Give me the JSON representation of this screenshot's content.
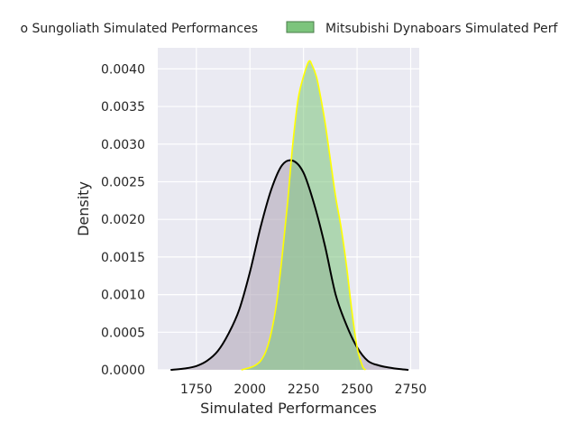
{
  "chart_data": {
    "type": "area",
    "xlabel": "Simulated Performances",
    "ylabel": "Density",
    "xlim": [
      1570,
      2790
    ],
    "ylim": [
      0,
      0.00428
    ],
    "x_ticks": [
      1750,
      2000,
      2250,
      2500,
      2750
    ],
    "y_ticks": [
      0,
      0.0005,
      0.001,
      0.0015,
      0.002,
      0.0025,
      0.003,
      0.0035,
      0.004
    ],
    "y_tick_labels": [
      "0.0000",
      "0.0005",
      "0.0010",
      "0.0015",
      "0.0020",
      "0.0025",
      "0.0030",
      "0.0035",
      "0.0040"
    ],
    "grid": true,
    "legend_position": "top",
    "series": [
      {
        "name": "Subaru Sungoliath Simulated Performances",
        "legend_label": "o Sungoliath Simulated Performances",
        "fill": "#b2a9b9",
        "edge": "#000000",
        "x": [
          1630,
          1700,
          1750,
          1800,
          1850,
          1900,
          1950,
          2000,
          2050,
          2100,
          2150,
          2200,
          2250,
          2300,
          2350,
          2400,
          2450,
          2500,
          2550,
          2600,
          2650,
          2700,
          2740
        ],
        "y": [
          0.0,
          2e-05,
          5e-05,
          0.00012,
          0.00025,
          0.00048,
          0.0008,
          0.0013,
          0.0019,
          0.0024,
          0.00272,
          0.00278,
          0.00262,
          0.0022,
          0.00165,
          0.001,
          0.0006,
          0.0003,
          0.00012,
          6e-05,
          3e-05,
          1e-05,
          0.0
        ]
      },
      {
        "name": "Mitsubishi Dynaboars Simulated Performances",
        "legend_label": "Mitsubishi Dynaboars Simulated Perf",
        "fill": "#7cc47c",
        "edge": "#ffff00",
        "x": [
          1960,
          2000,
          2025,
          2050,
          2075,
          2100,
          2125,
          2150,
          2175,
          2200,
          2225,
          2250,
          2275,
          2290,
          2310,
          2325,
          2350,
          2375,
          2400,
          2425,
          2450,
          2475,
          2500,
          2525,
          2540
        ],
        "y": [
          0.0,
          3e-05,
          6e-05,
          0.00012,
          0.00025,
          0.0005,
          0.0009,
          0.0015,
          0.0022,
          0.003,
          0.0036,
          0.0039,
          0.0041,
          0.00405,
          0.0039,
          0.0037,
          0.0033,
          0.0028,
          0.0023,
          0.0019,
          0.0014,
          0.0008,
          0.0003,
          5e-05,
          0.0
        ]
      }
    ]
  }
}
